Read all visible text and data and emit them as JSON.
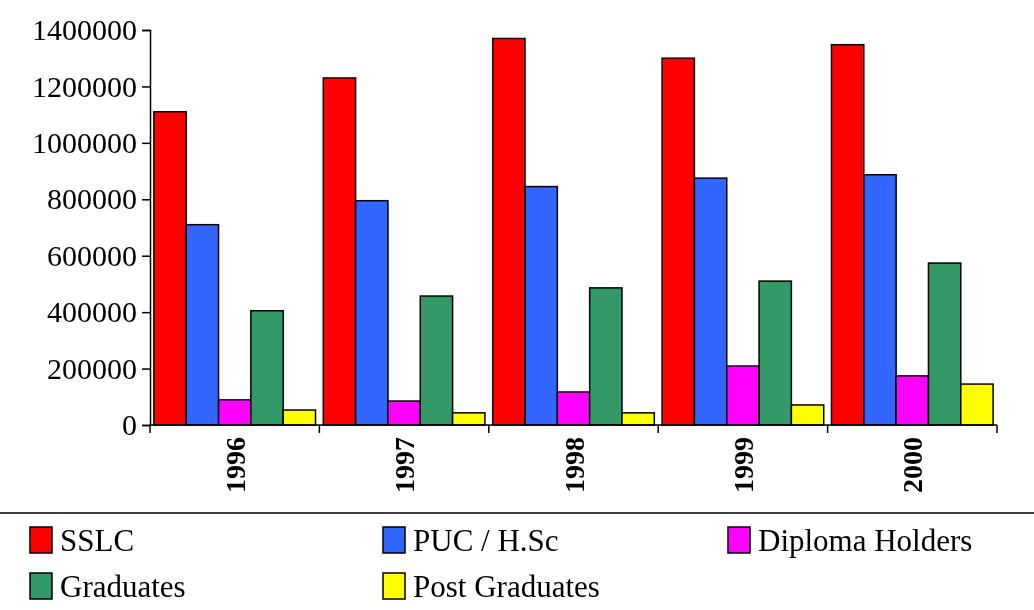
{
  "chart_data": {
    "type": "bar",
    "categories": [
      "1996",
      "1997",
      "1998",
      "1999",
      "2000"
    ],
    "series": [
      {
        "name": "SSLC",
        "color": "#ff0000",
        "values": [
          1110000,
          1230000,
          1370000,
          1300000,
          1348000
        ]
      },
      {
        "name": "PUC / H.Sc",
        "color": "#3366ff",
        "values": [
          710000,
          795000,
          845000,
          875000,
          887000
        ]
      },
      {
        "name": "Diploma Holders",
        "color": "#ff00ff",
        "values": [
          89000,
          85000,
          117000,
          209000,
          174000
        ]
      },
      {
        "name": "Graduates",
        "color": "#339966",
        "values": [
          405000,
          457000,
          486000,
          510000,
          574000
        ]
      },
      {
        "name": "Post Graduates",
        "color": "#ffff00",
        "values": [
          53000,
          43000,
          43000,
          71000,
          145000
        ]
      }
    ],
    "ylim": [
      0,
      1400000
    ],
    "yticks": [
      0,
      200000,
      400000,
      600000,
      800000,
      1000000,
      1200000,
      1400000
    ],
    "legend": "bottom"
  }
}
